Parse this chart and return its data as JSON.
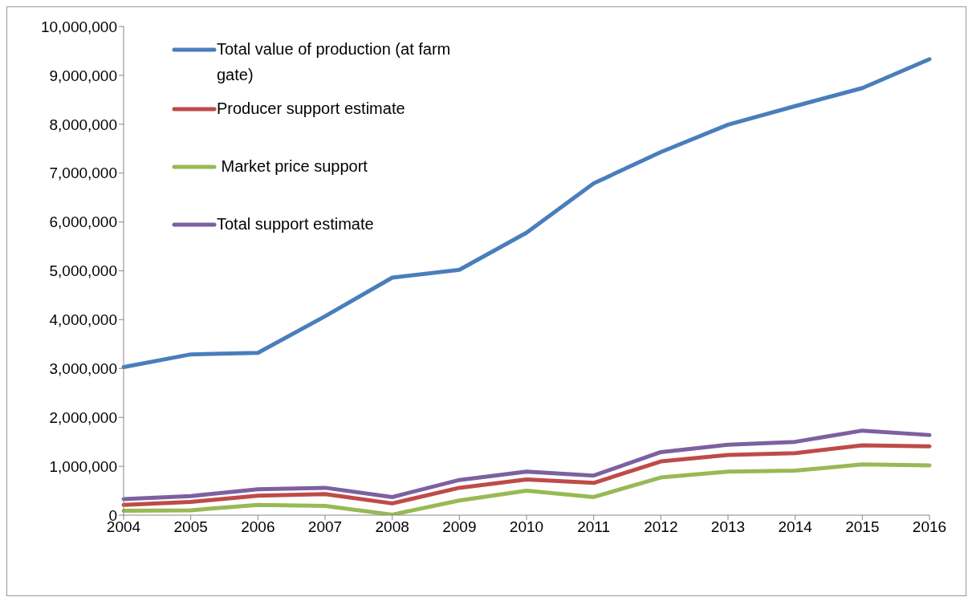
{
  "chart_data": {
    "type": "line",
    "categories": [
      "2004",
      "2005",
      "2006",
      "2007",
      "2008",
      "2009",
      "2010",
      "2011",
      "2012",
      "2013",
      "2014",
      "2015",
      "2016"
    ],
    "series": [
      {
        "name": "Total value of production (at farm gate)",
        "color": "#4a7ebb",
        "values": [
          3030000,
          3290000,
          3320000,
          4070000,
          4860000,
          5020000,
          5780000,
          6790000,
          7430000,
          7990000,
          8370000,
          8740000,
          9330000
        ]
      },
      {
        "name": "Producer support estimate",
        "color": "#be4b48",
        "values": [
          210000,
          270000,
          400000,
          430000,
          240000,
          560000,
          730000,
          660000,
          1100000,
          1230000,
          1270000,
          1430000,
          1410000
        ]
      },
      {
        "name": " Market price support",
        "color": "#98b954",
        "values": [
          90000,
          100000,
          210000,
          190000,
          10000,
          300000,
          500000,
          370000,
          770000,
          890000,
          910000,
          1040000,
          1020000
        ]
      },
      {
        "name": "Total support estimate",
        "color": "#7d60a0",
        "values": [
          330000,
          390000,
          530000,
          560000,
          370000,
          720000,
          890000,
          810000,
          1290000,
          1440000,
          1500000,
          1730000,
          1640000
        ]
      }
    ],
    "ylim": [
      0,
      10000000
    ],
    "yticks": [
      0,
      {
        "value": 1000000,
        "label": "1,000,000"
      },
      {
        "value": 2000000,
        "label": "2,000,000"
      },
      {
        "value": 3000000,
        "label": "3,000,000"
      },
      {
        "value": 4000000,
        "label": "4,000,000"
      },
      {
        "value": 5000000,
        "label": "5,000,000"
      },
      {
        "value": 6000000,
        "label": "6,000,000"
      },
      {
        "value": 7000000,
        "label": "7,000,000"
      },
      {
        "value": 8000000,
        "label": "8,000,000"
      },
      {
        "value": 9000000,
        "label": "9,000,000"
      },
      {
        "value": 10000000,
        "label": "10,000,000"
      }
    ],
    "grid": false,
    "legend": "top left",
    "marker": "none",
    "line_style": "solid"
  }
}
